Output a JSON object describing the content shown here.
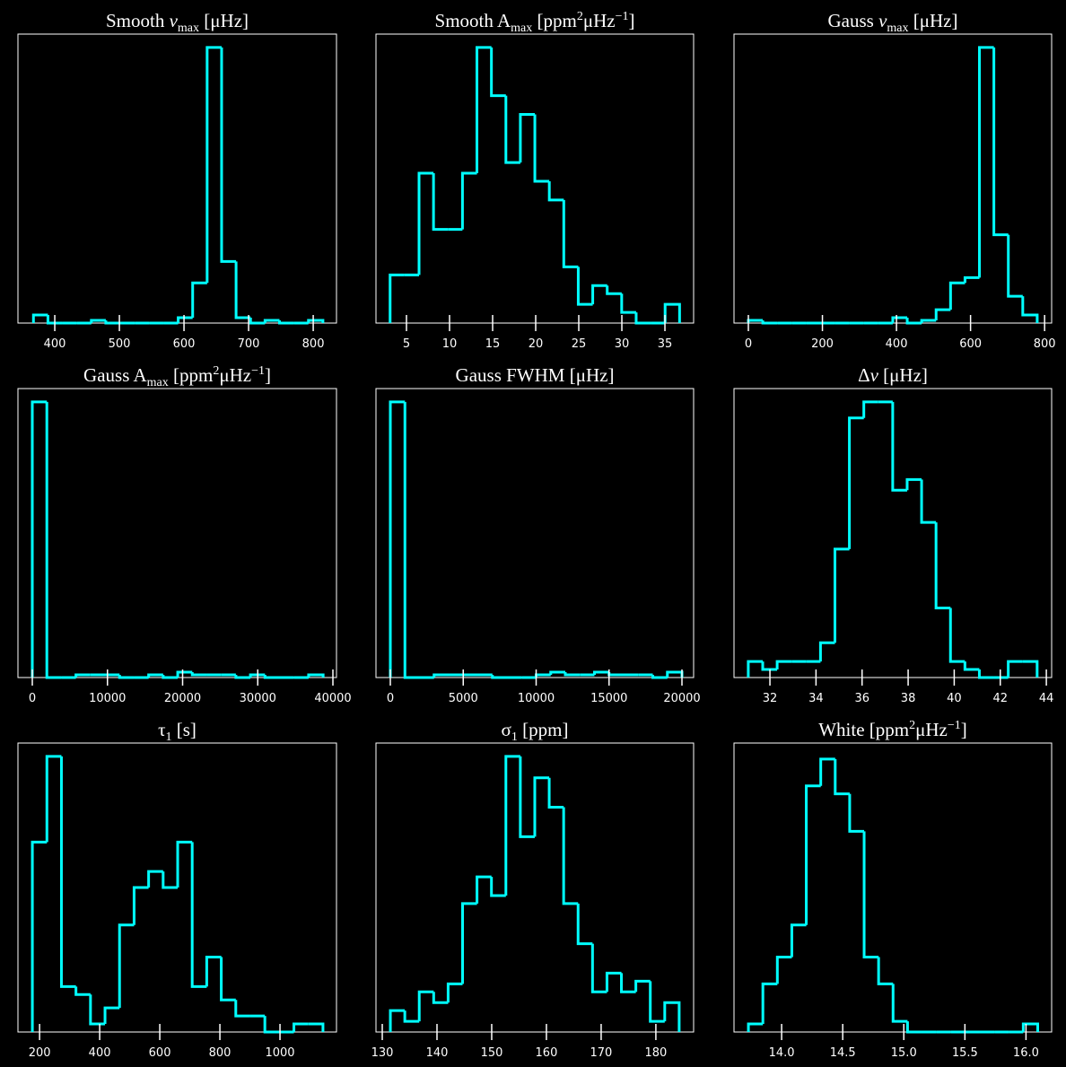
{
  "chart_data": [
    {
      "type": "histogram",
      "title": [
        {
          "text": "Smooth "
        },
        {
          "text": "ν",
          "style": "italic"
        },
        {
          "text": "max",
          "style": "sub"
        },
        {
          "text": " [μHz]"
        }
      ],
      "color": "#00ffff",
      "bins": [
        367,
        389.4,
        411.8,
        434.2,
        456.6,
        479,
        501.4,
        523.8,
        546.2,
        568.6,
        591,
        613.4,
        635.8,
        658.2,
        680.6,
        703,
        725.4,
        747.8,
        770.2,
        792.6,
        815
      ],
      "values": [
        3,
        0,
        0,
        0,
        1,
        0,
        0,
        0,
        0,
        0,
        2,
        15,
        103,
        23,
        2,
        0,
        1,
        0,
        0,
        1
      ],
      "xlim": [
        343,
        836
      ],
      "ylim": [
        0,
        108
      ],
      "xticks": [
        400,
        500,
        600,
        700,
        800
      ]
    },
    {
      "type": "histogram",
      "title": [
        {
          "text": "Smooth A"
        },
        {
          "text": "max",
          "style": "sub"
        },
        {
          "text": " [ppm"
        },
        {
          "text": "2",
          "style": "sup"
        },
        {
          "text": "μHz"
        },
        {
          "text": "−1",
          "style": "sup"
        },
        {
          "text": "]"
        }
      ],
      "color": "#00ffff",
      "bins": [
        3.1,
        4.78,
        6.46,
        8.14,
        9.82,
        11.5,
        13.18,
        14.86,
        16.54,
        18.22,
        19.9,
        21.58,
        23.26,
        24.94,
        26.62,
        28.3,
        29.98,
        31.66,
        33.34,
        35.02,
        36.7
      ],
      "values": [
        18,
        18,
        56,
        35,
        35,
        56,
        103,
        85,
        60,
        78,
        53,
        46,
        21,
        7,
        14,
        11,
        4,
        0,
        0,
        7
      ],
      "xlim": [
        1.46,
        38.33
      ],
      "ylim": [
        0,
        108
      ],
      "xticks": [
        5,
        10,
        15,
        20,
        25,
        30,
        35
      ]
    },
    {
      "type": "histogram",
      "title": [
        {
          "text": "Gauss "
        },
        {
          "text": "ν",
          "style": "italic"
        },
        {
          "text": "max",
          "style": "sub"
        },
        {
          "text": " [μHz]"
        }
      ],
      "color": "#00ffff",
      "bins": [
        0,
        39,
        78,
        117,
        156,
        195,
        234,
        273,
        312,
        351,
        390,
        429,
        468,
        507,
        546,
        585,
        624,
        663,
        702,
        741,
        780
      ],
      "values": [
        1,
        0,
        0,
        0,
        0,
        0,
        0,
        0,
        0,
        0,
        2,
        0,
        1,
        5,
        15,
        17,
        103,
        33,
        10,
        3
      ],
      "xlim": [
        -38.8,
        819
      ],
      "ylim": [
        0,
        108
      ],
      "xticks": [
        0,
        200,
        400,
        600,
        800
      ]
    },
    {
      "type": "histogram",
      "title": [
        {
          "text": "Gauss A"
        },
        {
          "text": "max",
          "style": "sub"
        },
        {
          "text": " [ppm"
        },
        {
          "text": "2",
          "style": "sup"
        },
        {
          "text": "μHz"
        },
        {
          "text": "−1",
          "style": "sup"
        },
        {
          "text": "]"
        }
      ],
      "color": "#00ffff",
      "bins": [
        0,
        1935,
        3870,
        5805,
        7740,
        9675,
        11610,
        13545,
        15480,
        17415,
        19350,
        21285,
        23220,
        25155,
        27090,
        29025,
        30960,
        32895,
        34830,
        36765,
        38700
      ],
      "values": [
        103,
        0,
        0,
        1,
        1,
        1,
        0,
        0,
        1,
        0,
        2,
        1,
        1,
        1,
        0,
        1,
        0,
        0,
        0,
        1
      ],
      "xlim": [
        -1910,
        40477
      ],
      "ylim": [
        0,
        108
      ],
      "xticks": [
        0,
        10000,
        20000,
        30000,
        40000
      ]
    },
    {
      "type": "histogram",
      "title": [
        {
          "text": "Gauss FWHM [μHz]"
        }
      ],
      "color": "#00ffff",
      "bins": [
        0,
        1000,
        2000,
        3000,
        4000,
        5000,
        6000,
        7000,
        8000,
        9000,
        10000,
        11000,
        12000,
        13000,
        14000,
        15000,
        16000,
        17000,
        18000,
        19000,
        20000
      ],
      "values": [
        103,
        0,
        0,
        1,
        1,
        1,
        1,
        0,
        0,
        0,
        1,
        2,
        1,
        1,
        2,
        1,
        1,
        1,
        0,
        2
      ],
      "xlim": [
        -985,
        20800
      ],
      "ylim": [
        0,
        108
      ],
      "xticks": [
        0,
        5000,
        10000,
        15000,
        20000
      ]
    },
    {
      "type": "histogram",
      "title": [
        {
          "text": "Δ"
        },
        {
          "text": "ν",
          "style": "italic"
        },
        {
          "text": " [μHz]"
        }
      ],
      "color": "#00ffff",
      "bins": [
        31.06,
        31.687,
        32.314,
        32.941,
        33.568,
        34.195,
        34.822,
        35.449,
        36.076,
        36.703,
        37.33,
        37.957,
        38.584,
        39.211,
        39.838,
        40.465,
        41.092,
        41.719,
        42.346,
        42.973,
        43.6
      ],
      "values": [
        6,
        3,
        6,
        6,
        6,
        13,
        48,
        97,
        103,
        103,
        70,
        74,
        58,
        26,
        6,
        3,
        0,
        0,
        6,
        6
      ],
      "xlim": [
        30.44,
        44.23
      ],
      "ylim": [
        0,
        108
      ],
      "xticks": [
        32,
        34,
        36,
        38,
        40,
        42,
        44
      ]
    },
    {
      "type": "histogram",
      "title": [
        {
          "text": "τ"
        },
        {
          "text": "1",
          "style": "sub"
        },
        {
          "text": " [s]"
        }
      ],
      "color": "#00ffff",
      "bins": [
        176,
        224.35,
        272.7,
        321.05,
        369.4,
        417.75,
        466.1,
        514.45,
        562.8,
        611.15,
        659.5,
        707.85,
        756.2,
        804.55,
        852.9,
        901.25,
        949.6,
        997.95,
        1046.3,
        1094.65,
        1143
      ],
      "values": [
        71,
        103,
        17,
        14,
        3,
        9,
        40,
        54,
        60,
        54,
        71,
        17,
        28,
        12,
        6,
        6,
        0,
        0,
        3,
        3
      ],
      "xlim": [
        128,
        1188
      ],
      "ylim": [
        0,
        108
      ],
      "xticks": [
        200,
        400,
        600,
        800,
        1000
      ]
    },
    {
      "type": "histogram",
      "title": [
        {
          "text": "σ"
        },
        {
          "text": "1",
          "style": "sub"
        },
        {
          "text": " [ppm]"
        }
      ],
      "color": "#00ffff",
      "bins": [
        131.48,
        134.119,
        136.758,
        139.397,
        142.036,
        144.675,
        147.314,
        149.953,
        152.592,
        155.231,
        157.87,
        160.509,
        163.148,
        165.787,
        168.426,
        171.065,
        173.704,
        176.343,
        178.982,
        181.621,
        184.26
      ],
      "values": [
        8,
        4,
        15,
        11,
        18,
        48,
        58,
        51,
        103,
        73,
        95,
        84,
        48,
        33,
        15,
        22,
        15,
        19,
        4,
        11
      ],
      "xlim": [
        128.85,
        186.9
      ],
      "ylim": [
        0,
        108
      ],
      "xticks": [
        130,
        140,
        150,
        160,
        170,
        180
      ]
    },
    {
      "type": "histogram",
      "title": [
        {
          "text": "White [ppm"
        },
        {
          "text": "2",
          "style": "sup"
        },
        {
          "text": "μHz"
        },
        {
          "text": "−1",
          "style": "sup"
        },
        {
          "text": "]"
        }
      ],
      "color": "#00ffff",
      "bins": [
        13.728,
        13.8464,
        13.9648,
        14.0832,
        14.2016,
        14.32,
        14.4384,
        14.5568,
        14.6752,
        14.7936,
        14.912,
        15.0304,
        15.1488,
        15.2672,
        15.3856,
        15.504,
        15.6224,
        15.7408,
        15.8592,
        15.9776,
        16.096
      ],
      "values": [
        3,
        18,
        28,
        40,
        92,
        102,
        89,
        75,
        28,
        18,
        4,
        0,
        0,
        0,
        0,
        0,
        0,
        0,
        0,
        3
      ],
      "xlim": [
        13.61,
        16.21
      ],
      "ylim": [
        0,
        108
      ],
      "xticks": [
        {
          "value": 14,
          "label": "14.0"
        },
        14.5,
        {
          "value": 15,
          "label": "15.0"
        },
        15.5,
        {
          "value": 16,
          "label": "16.0"
        }
      ]
    }
  ]
}
